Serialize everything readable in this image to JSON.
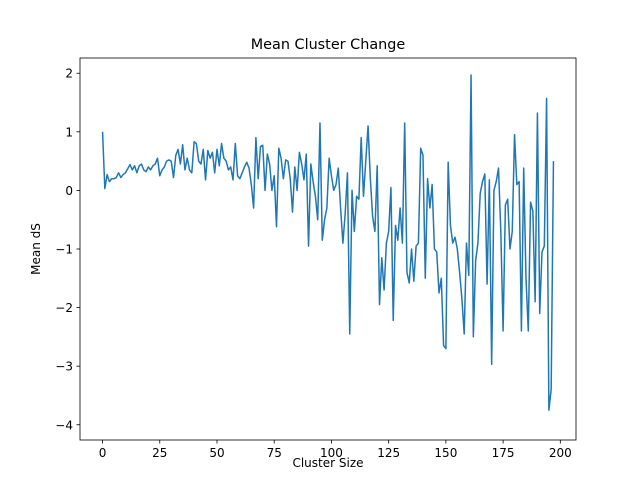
{
  "chart_data": {
    "type": "line",
    "title": "Mean Cluster Change",
    "xlabel": "Cluster Size",
    "ylabel": "Mean dS",
    "series": [
      {
        "color": "#1f77b4",
        "x": [
          0,
          1,
          2,
          3,
          4,
          5,
          6,
          7,
          8,
          9,
          10,
          11,
          12,
          13,
          14,
          15,
          16,
          17,
          18,
          19,
          20,
          21,
          22,
          23,
          24,
          25,
          26,
          27,
          28,
          29,
          30,
          31,
          32,
          33,
          34,
          35,
          36,
          37,
          38,
          39,
          40,
          41,
          42,
          43,
          44,
          45,
          46,
          47,
          48,
          49,
          50,
          51,
          52,
          53,
          54,
          55,
          56,
          57,
          58,
          59,
          60,
          61,
          62,
          63,
          64,
          65,
          66,
          67,
          68,
          69,
          70,
          71,
          72,
          73,
          74,
          75,
          76,
          77,
          78,
          79,
          80,
          81,
          82,
          83,
          84,
          85,
          86,
          87,
          88,
          89,
          90,
          91,
          92,
          93,
          94,
          95,
          96,
          97,
          98,
          99,
          100,
          101,
          102,
          103,
          104,
          105,
          106,
          107,
          108,
          109,
          110,
          111,
          112,
          113,
          114,
          115,
          116,
          117,
          118,
          119,
          120,
          121,
          122,
          123,
          124,
          125,
          126,
          127,
          128,
          129,
          130,
          131,
          132,
          133,
          134,
          135,
          136,
          137,
          138,
          139,
          140,
          141,
          142,
          143,
          144,
          145,
          146,
          147,
          148,
          149,
          150,
          151,
          152,
          153,
          154,
          155,
          156,
          157,
          158,
          159,
          160,
          161,
          162,
          163,
          164,
          165,
          166,
          167,
          168,
          169,
          170,
          171,
          172,
          173,
          174,
          175,
          176,
          177,
          178,
          179,
          180,
          181,
          182,
          183,
          184,
          185,
          186,
          187,
          188,
          189,
          190,
          191,
          192,
          193,
          194,
          195,
          196,
          197
        ],
        "values": [
          1.0,
          0.03,
          0.27,
          0.15,
          0.2,
          0.2,
          0.22,
          0.3,
          0.22,
          0.27,
          0.3,
          0.37,
          0.44,
          0.35,
          0.42,
          0.3,
          0.42,
          0.45,
          0.35,
          0.32,
          0.4,
          0.35,
          0.42,
          0.45,
          0.55,
          0.25,
          0.35,
          0.4,
          0.5,
          0.52,
          0.5,
          0.22,
          0.6,
          0.7,
          0.45,
          0.78,
          0.35,
          0.55,
          0.35,
          0.3,
          0.83,
          0.8,
          0.5,
          0.45,
          0.7,
          0.18,
          0.68,
          0.55,
          0.65,
          0.3,
          0.7,
          0.42,
          0.8,
          0.55,
          0.5,
          0.35,
          0.4,
          0.18,
          0.8,
          0.25,
          0.2,
          0.3,
          0.4,
          0.48,
          0.38,
          0.1,
          -0.3,
          0.9,
          0.2,
          0.75,
          0.77,
          0.0,
          0.62,
          0.45,
          0.0,
          0.25,
          -0.62,
          0.72,
          0.55,
          0.2,
          0.52,
          0.5,
          0.2,
          -0.37,
          0.4,
          0.0,
          0.65,
          0.45,
          0.18,
          0.62,
          -0.95,
          0.45,
          0.15,
          -0.1,
          -0.5,
          1.15,
          -0.85,
          -0.5,
          -0.3,
          0.55,
          0.25,
          0.0,
          0.1,
          0.38,
          -0.3,
          -0.9,
          -0.4,
          0.3,
          -2.45,
          0.0,
          -0.7,
          -0.1,
          -0.15,
          0.9,
          -0.1,
          0.5,
          1.1,
          0.2,
          -0.45,
          -0.7,
          0.42,
          -1.95,
          -1.15,
          -1.7,
          -0.9,
          -0.7,
          0.05,
          -2.22,
          -0.6,
          -0.85,
          -0.3,
          -0.9,
          1.15,
          -1.4,
          -1.58,
          -1.0,
          -1.55,
          -0.95,
          -0.9,
          0.72,
          0.6,
          -1.5,
          0.2,
          -0.3,
          0.1,
          -1.0,
          -1.05,
          -1.75,
          -1.5,
          -2.65,
          -2.7,
          0.48,
          -0.6,
          -0.9,
          -0.8,
          -1.0,
          -1.4,
          -1.85,
          -2.45,
          -0.9,
          -1.45,
          1.97,
          -2.5,
          -1.2,
          -0.9,
          -0.05,
          0.15,
          0.28,
          -1.6,
          0.18,
          -2.97,
          0.0,
          0.15,
          0.38,
          -0.7,
          -2.4,
          -0.25,
          -0.15,
          -1.0,
          -0.7,
          0.95,
          0.1,
          0.15,
          -2.4,
          0.38,
          -1.5,
          -2.4,
          -0.2,
          -0.35,
          -1.9,
          1.32,
          -2.1,
          -1.05,
          -0.95,
          1.57,
          -3.75,
          -3.4,
          0.5
        ]
      }
    ],
    "xlim": [
      -9.85,
      206.85
    ],
    "xticks": [
      0,
      25,
      50,
      75,
      100,
      125,
      150,
      175,
      200
    ],
    "ylim": [
      -4.26,
      2.26
    ],
    "yticks": [
      {
        "value": -4,
        "label": "−4"
      },
      {
        "value": -3,
        "label": "−3"
      },
      {
        "value": -2,
        "label": "−2"
      },
      {
        "value": -1,
        "label": "−1"
      },
      0,
      1,
      2
    ]
  }
}
